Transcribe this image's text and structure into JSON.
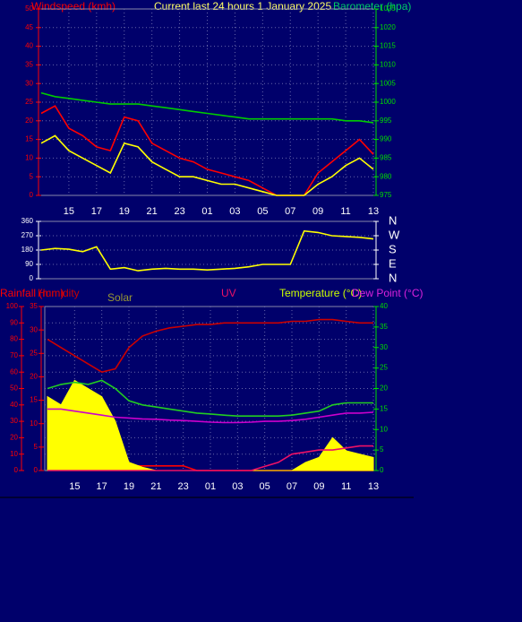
{
  "chart_data": [
    {
      "type": "line",
      "title": "Current last 24 hours 1 January 2025",
      "y_label": "Windspeed (kmh)",
      "y2_label": "Barometer (hpa)",
      "y_color": "#ff0000",
      "y2_color": "#00dd00",
      "grid": true,
      "categories": [
        null,
        null,
        "15",
        null,
        "17",
        null,
        "19",
        null,
        "21",
        null,
        "23",
        null,
        "01",
        null,
        "03",
        null,
        "05",
        null,
        "07",
        null,
        "09",
        null,
        "11",
        null,
        "13"
      ],
      "ylim": [
        0,
        50
      ],
      "yticks": [
        0,
        5,
        10,
        15,
        20,
        25,
        30,
        35,
        40,
        45,
        50
      ],
      "y2lim": [
        975,
        1025
      ],
      "y2ticks": [
        975,
        980,
        985,
        990,
        995,
        1000,
        1005,
        1010,
        1015,
        1020,
        1025
      ],
      "series": [
        {
          "color": "#ff0000",
          "values": [
            22,
            24,
            18,
            16,
            13,
            12,
            21,
            20,
            14,
            12,
            10,
            9,
            7,
            6,
            5,
            4,
            2,
            0,
            0,
            0,
            6,
            9,
            12,
            15,
            11
          ]
        },
        {
          "color": "#ffff00",
          "values": [
            14,
            16,
            12,
            10,
            8,
            6,
            14,
            13,
            9,
            7,
            5,
            5,
            4,
            3,
            3,
            2,
            1,
            0,
            0,
            0,
            3,
            5,
            8,
            10,
            7
          ]
        },
        {
          "color": "#00cc00",
          "axis": "y2",
          "values": [
            1002.5,
            1001.5,
            1001,
            1000.5,
            1000,
            999.5,
            999.5,
            999.5,
            999,
            998.5,
            998,
            997.5,
            997,
            996.5,
            996,
            995.5,
            995.5,
            995.5,
            995.5,
            995.5,
            995.5,
            995.5,
            995,
            995,
            994.5
          ]
        }
      ]
    },
    {
      "type": "line",
      "y_color": "#ffffff",
      "y2_color": "#ffffff",
      "grid": true,
      "ylim": [
        0,
        360
      ],
      "yticks": [
        0,
        90,
        180,
        270,
        360
      ],
      "y2lim": [
        0,
        360
      ],
      "y2ticks": [
        {
          "value": 0,
          "label": "N"
        },
        {
          "value": 90,
          "label": "E"
        },
        {
          "value": 180,
          "label": "S"
        },
        {
          "value": 270,
          "label": "W"
        },
        {
          "value": 360,
          "label": "N"
        }
      ],
      "series": [
        {
          "color": "#ffff00",
          "values": [
            180,
            190,
            185,
            170,
            200,
            60,
            70,
            50,
            60,
            65,
            60,
            60,
            55,
            60,
            65,
            75,
            90,
            90,
            90,
            300,
            290,
            270,
            265,
            260,
            250
          ]
        }
      ]
    },
    {
      "type": "line",
      "y_color": "#ff0000",
      "y2_color": "#ff0000",
      "y3_color": "#00dd00",
      "grid": true,
      "categories": [
        null,
        null,
        "15",
        null,
        "17",
        null,
        "19",
        null,
        "21",
        null,
        "23",
        null,
        "01",
        null,
        "03",
        null,
        "05",
        null,
        "07",
        null,
        "09",
        null,
        "11",
        null,
        "13"
      ],
      "ylim": [
        0,
        100
      ],
      "yticks": [
        0,
        10,
        20,
        30,
        40,
        50,
        60,
        70,
        80,
        90,
        100
      ],
      "y2lim": [
        0,
        35
      ],
      "y2ticks": [
        0,
        5,
        10,
        15,
        20,
        25,
        30,
        35
      ],
      "y3lim": [
        0,
        40
      ],
      "y3ticks": [
        0,
        5,
        10,
        15,
        20,
        25,
        30,
        35,
        40
      ],
      "series": [
        {
          "name": "Rainfall (mm)",
          "color": "#ff0000",
          "axis": "y2",
          "values": [
            1,
            1,
            1,
            1,
            1,
            1,
            1,
            1,
            1,
            1,
            1,
            0,
            0,
            0,
            0,
            0,
            0,
            0,
            0,
            0,
            0,
            0,
            0,
            0,
            0
          ]
        },
        {
          "name": "Humidity",
          "color": "#cc0000",
          "values": [
            80,
            75,
            70,
            65,
            60,
            62,
            75,
            82,
            85,
            87,
            88,
            89,
            89,
            90,
            90,
            90,
            90,
            90,
            91,
            91,
            92,
            92,
            91,
            90,
            90
          ]
        },
        {
          "name": "Solar",
          "color": "#ffff00",
          "label_color": "#999933",
          "area": true,
          "values": [
            45,
            40,
            55,
            50,
            45,
            30,
            5,
            2,
            0,
            0,
            0,
            0,
            0,
            0,
            0,
            0,
            0,
            0,
            0,
            5,
            8,
            20,
            12,
            10,
            8
          ]
        },
        {
          "name": "UV",
          "color": "#ee1166",
          "axis": "y3",
          "values": [
            0,
            0,
            0,
            0,
            0,
            0,
            0,
            0,
            0,
            0,
            0,
            0,
            0,
            0,
            0,
            0,
            1,
            2,
            4,
            4.5,
            5,
            5,
            5.5,
            6,
            6
          ]
        },
        {
          "name": "Temperature (°C)",
          "color": "#22cc22",
          "label_color": "#ccff00",
          "axis": "y3",
          "values": [
            20,
            21,
            21.5,
            21,
            22,
            20,
            17,
            16,
            15.5,
            15,
            14.5,
            14,
            13.8,
            13.5,
            13.3,
            13.3,
            13.3,
            13.3,
            13.5,
            14,
            14.5,
            16,
            16.5,
            16.5,
            16.5
          ]
        },
        {
          "name": "Dew Point (°C)",
          "color": "#cc00cc",
          "label_color": "#dd22dd",
          "axis": "y3",
          "values": [
            15,
            15,
            14.5,
            14,
            13.5,
            13,
            12.8,
            12.6,
            12.5,
            12.3,
            12.2,
            12,
            11.8,
            11.7,
            11.7,
            11.8,
            12,
            12,
            12.2,
            12.5,
            13,
            13.5,
            14,
            14,
            14.2
          ]
        }
      ]
    }
  ]
}
